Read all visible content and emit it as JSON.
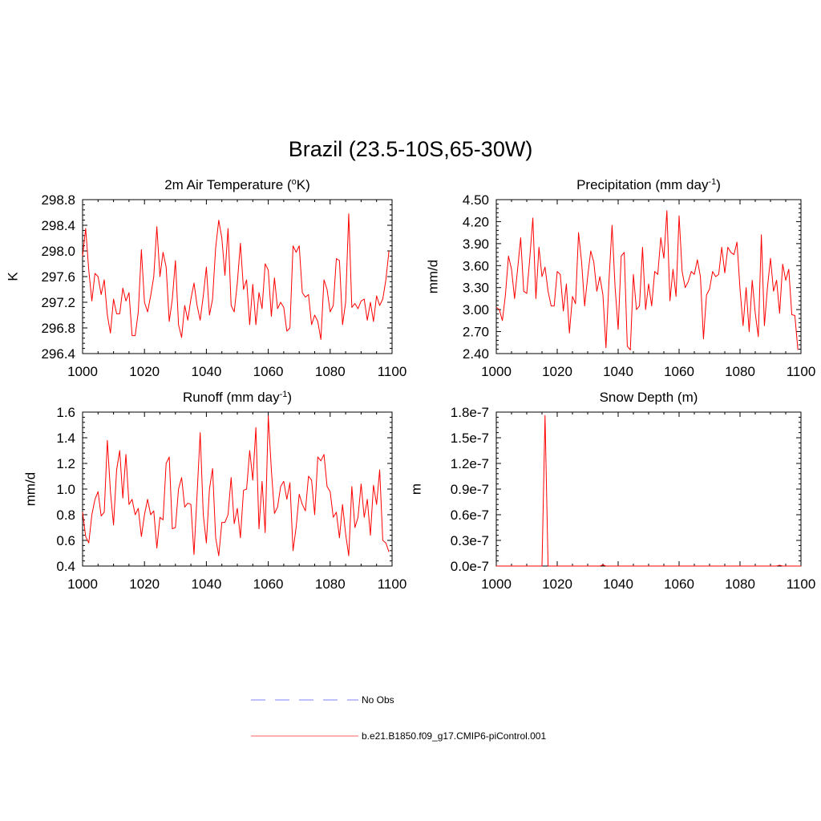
{
  "figure_title": "Brazil (23.5-10S,65-30W)",
  "colors": {
    "model": "#ff0000",
    "obs": "#9999ff",
    "axis": "#000000"
  },
  "legend": {
    "obs_label": "No Obs",
    "model_label": "b.e21.B1850.f09_g17.CMIP6-piControl.001"
  },
  "chart_data": [
    {
      "type": "line",
      "title": "2m Air Temperature (",
      "title_sup": "o",
      "title_rest": "K)",
      "xlabel": "",
      "ylabel": "K",
      "xlim": [
        1000,
        1100
      ],
      "ylim": [
        296.4,
        298.8
      ],
      "xticks": [
        "1000",
        "1020",
        "1040",
        "1060",
        "1080",
        "1100"
      ],
      "yticks": [
        "296.4",
        "296.8",
        "297.2",
        "297.6",
        "298.0",
        "298.4",
        "298.8"
      ],
      "series": [
        {
          "name": "b.e21.B1850.f09_g17.CMIP6-piControl.001",
          "x_start": 1000,
          "x_step": 1,
          "values": [
            297.92,
            298.35,
            297.7,
            297.22,
            297.65,
            297.6,
            297.32,
            297.55,
            297.0,
            296.72,
            297.25,
            297.02,
            297.02,
            297.42,
            297.22,
            297.35,
            296.68,
            296.68,
            297.05,
            298.02,
            297.2,
            297.05,
            297.3,
            297.6,
            298.38,
            297.6,
            297.98,
            297.75,
            296.9,
            297.25,
            297.85,
            296.85,
            296.65,
            297.15,
            296.92,
            297.25,
            297.5,
            297.15,
            296.92,
            297.3,
            297.75,
            297.0,
            297.25,
            298.05,
            298.48,
            298.2,
            297.62,
            298.35,
            297.15,
            297.05,
            297.5,
            298.12,
            297.4,
            297.55,
            296.85,
            297.48,
            296.85,
            297.35,
            297.1,
            297.8,
            297.7,
            296.98,
            297.58,
            297.1,
            297.2,
            297.12,
            296.75,
            296.8,
            298.08,
            297.98,
            298.08,
            297.35,
            297.28,
            297.32,
            296.85,
            297.0,
            296.9,
            296.62,
            297.55,
            297.4,
            297.05,
            297.15,
            297.88,
            297.85,
            296.85,
            297.2,
            298.58,
            297.12,
            297.18,
            297.1,
            297.22,
            297.25,
            296.92,
            297.2,
            296.9,
            297.3,
            297.15,
            297.25,
            297.55,
            298.0
          ]
        }
      ]
    },
    {
      "type": "line",
      "title": "Precipitation (mm day",
      "title_sup": "-1",
      "title_rest": ")",
      "xlabel": "",
      "ylabel": "mm/d",
      "xlim": [
        1000,
        1100
      ],
      "ylim": [
        2.4,
        4.5
      ],
      "xticks": [
        "1000",
        "1020",
        "1040",
        "1060",
        "1080",
        "1100"
      ],
      "yticks": [
        "2.40",
        "2.70",
        "3.00",
        "3.30",
        "3.60",
        "3.90",
        "4.20",
        "4.50"
      ],
      "series": [
        {
          "name": "b.e21.B1850.f09_g17.CMIP6-piControl.001",
          "x_start": 1000,
          "x_step": 1,
          "values": [
            3.03,
            3.0,
            2.85,
            3.2,
            3.73,
            3.55,
            3.15,
            3.55,
            3.98,
            3.25,
            3.22,
            3.7,
            4.25,
            3.15,
            3.85,
            3.45,
            3.58,
            3.25,
            3.05,
            3.05,
            3.52,
            3.48,
            2.98,
            3.35,
            2.68,
            3.18,
            3.08,
            4.05,
            3.65,
            3.05,
            3.45,
            3.8,
            3.65,
            3.25,
            3.45,
            3.2,
            2.48,
            3.4,
            4.15,
            3.3,
            2.73,
            3.73,
            3.78,
            2.5,
            2.45,
            3.48,
            3.0,
            3.05,
            3.85,
            3.0,
            3.35,
            3.05,
            3.52,
            3.48,
            3.98,
            3.7,
            4.35,
            3.12,
            3.55,
            3.18,
            4.28,
            3.52,
            3.3,
            3.38,
            3.52,
            3.48,
            3.68,
            3.45,
            2.6,
            3.2,
            3.28,
            3.52,
            3.45,
            3.48,
            3.85,
            3.5,
            3.85,
            3.78,
            3.75,
            3.92,
            3.28,
            2.78,
            3.3,
            2.7,
            3.4,
            2.95,
            2.63,
            4.02,
            2.78,
            3.3,
            3.7,
            3.25,
            3.4,
            2.95,
            3.62,
            3.4,
            3.55,
            2.93,
            2.92,
            2.45
          ]
        }
      ]
    },
    {
      "type": "line",
      "title": "Runoff (mm day",
      "title_sup": "-1",
      "title_rest": ")",
      "xlabel": "",
      "ylabel": "mm/d",
      "xlim": [
        1000,
        1100
      ],
      "ylim": [
        0.4,
        1.6
      ],
      "xticks": [
        "1000",
        "1020",
        "1040",
        "1060",
        "1080",
        "1100"
      ],
      "yticks": [
        "0.4",
        "0.6",
        "0.8",
        "1.0",
        "1.2",
        "1.4",
        "1.6"
      ],
      "series": [
        {
          "name": "b.e21.B1850.f09_g17.CMIP6-piControl.001",
          "x_start": 1000,
          "x_step": 1,
          "values": [
            0.82,
            0.63,
            0.58,
            0.8,
            0.92,
            0.98,
            0.79,
            0.82,
            1.38,
            0.98,
            0.72,
            1.15,
            1.3,
            0.93,
            1.27,
            0.88,
            0.92,
            0.8,
            0.85,
            0.63,
            0.8,
            0.92,
            0.8,
            0.83,
            0.54,
            0.78,
            0.76,
            1.2,
            1.25,
            0.69,
            0.7,
            1.0,
            1.09,
            0.86,
            0.89,
            0.88,
            0.49,
            0.96,
            1.44,
            0.8,
            0.58,
            1.0,
            1.16,
            0.62,
            0.48,
            0.74,
            0.74,
            0.8,
            1.09,
            0.73,
            0.85,
            0.62,
            0.99,
            1.0,
            1.3,
            1.07,
            1.48,
            0.69,
            1.06,
            0.66,
            1.57,
            1.15,
            0.81,
            0.86,
            1.02,
            1.06,
            0.92,
            1.05,
            0.52,
            0.7,
            0.96,
            0.88,
            0.83,
            1.1,
            1.07,
            0.8,
            1.25,
            1.22,
            1.27,
            1.02,
            0.98,
            0.78,
            0.82,
            0.62,
            0.88,
            0.65,
            0.48,
            1.02,
            0.7,
            0.78,
            1.04,
            0.78,
            0.92,
            0.64,
            1.03,
            0.88,
            1.15,
            0.6,
            0.58,
            0.51
          ]
        }
      ]
    },
    {
      "type": "line",
      "title": "Snow Depth (m)",
      "title_sup": "",
      "title_rest": "",
      "xlabel": "",
      "ylabel": "m",
      "xlim": [
        1000,
        1100
      ],
      "ylim": [
        0,
        1.8e-07
      ],
      "xticks": [
        "1000",
        "1020",
        "1040",
        "1060",
        "1080",
        "1100"
      ],
      "yticks": [
        "0.0e-7",
        "0.3e-7",
        "0.6e-7",
        "0.9e-7",
        "1.2e-7",
        "1.5e-7",
        "1.8e-7"
      ],
      "series": [
        {
          "name": "b.e21.B1850.f09_g17.CMIP6-piControl.001",
          "x_start": 1000,
          "x_step": 1,
          "values": [
            0,
            0,
            0,
            0,
            0,
            0,
            0,
            0,
            0,
            0,
            0,
            0,
            0,
            0,
            0,
            0,
            1.76e-07,
            0,
            0,
            0,
            0,
            0,
            0,
            0,
            0,
            0,
            0,
            0,
            0,
            0,
            0,
            0,
            0,
            0,
            0,
            1.5e-09,
            0,
            0,
            0,
            0,
            0,
            0,
            0,
            0,
            0,
            0,
            0,
            0,
            0,
            0,
            0,
            0,
            0,
            0,
            0,
            0,
            0,
            0,
            0,
            0,
            0,
            0,
            0,
            0,
            0,
            0,
            0,
            0,
            0,
            0,
            0,
            0,
            0,
            0,
            0,
            0,
            0,
            0,
            0,
            0,
            0,
            0,
            0,
            0,
            0,
            0,
            0,
            0,
            0,
            0,
            0,
            0,
            0,
            1e-09,
            0,
            0,
            0,
            0,
            0,
            0,
            0
          ]
        }
      ]
    }
  ]
}
